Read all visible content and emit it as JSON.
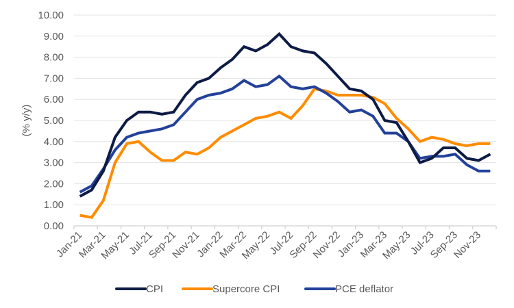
{
  "chart_data": {
    "type": "line",
    "title": "",
    "xlabel": "",
    "ylabel": "(% y/y)",
    "ylim": [
      0,
      10
    ],
    "yticks": [
      "0.00",
      "1.00",
      "2.00",
      "3.00",
      "4.00",
      "5.00",
      "6.00",
      "7.00",
      "8.00",
      "9.00",
      "10.00"
    ],
    "grid": true,
    "legend_position": "bottom",
    "x": [
      "Jan-21",
      "Feb-21",
      "Mar-21",
      "Apr-21",
      "May-21",
      "Jun-21",
      "Jul-21",
      "Aug-21",
      "Sep-21",
      "Oct-21",
      "Nov-21",
      "Dec-21",
      "Jan-22",
      "Feb-22",
      "Mar-22",
      "Apr-22",
      "May-22",
      "Jun-22",
      "Jul-22",
      "Aug-22",
      "Sep-22",
      "Oct-22",
      "Nov-22",
      "Dec-22",
      "Jan-23",
      "Feb-23",
      "Mar-23",
      "Apr-23",
      "May-23",
      "Jun-23",
      "Jul-23",
      "Aug-23",
      "Sep-23",
      "Oct-23",
      "Nov-23",
      "Dec-23"
    ],
    "xtick_labels": [
      "Jan-21",
      "Mar-21",
      "May-21",
      "Jul-21",
      "Sep-21",
      "Nov-21",
      "Jan-22",
      "Mar-22",
      "May-22",
      "Jul-22",
      "Sep-22",
      "Nov-22",
      "Jan-23",
      "Mar-23",
      "May-23",
      "Jul-23",
      "Sep-23",
      "Nov-23"
    ],
    "series": [
      {
        "name": "CPI",
        "color": "#0d1b45",
        "values": [
          1.4,
          1.7,
          2.6,
          4.2,
          5.0,
          5.4,
          5.4,
          5.3,
          5.4,
          6.2,
          6.8,
          7.0,
          7.5,
          7.9,
          8.5,
          8.3,
          8.6,
          9.1,
          8.5,
          8.3,
          8.2,
          7.7,
          7.1,
          6.5,
          6.4,
          6.0,
          5.0,
          4.9,
          4.0,
          3.0,
          3.2,
          3.7,
          3.7,
          3.2,
          3.1,
          3.4
        ]
      },
      {
        "name": "Supercore CPI",
        "color": "#ff8c00",
        "values": [
          0.5,
          0.4,
          1.2,
          3.0,
          3.9,
          4.0,
          3.5,
          3.1,
          3.1,
          3.5,
          3.4,
          3.7,
          4.2,
          4.5,
          4.8,
          5.1,
          5.2,
          5.4,
          5.1,
          5.7,
          6.5,
          6.4,
          6.2,
          6.2,
          6.2,
          6.1,
          5.8,
          5.1,
          4.6,
          4.0,
          4.2,
          4.1,
          3.9,
          3.8,
          3.9,
          3.9
        ]
      },
      {
        "name": "PCE deflator",
        "color": "#23419a",
        "values": [
          1.6,
          1.9,
          2.7,
          3.6,
          4.2,
          4.4,
          4.5,
          4.6,
          4.8,
          5.4,
          6.0,
          6.2,
          6.3,
          6.5,
          6.9,
          6.6,
          6.7,
          7.1,
          6.6,
          6.5,
          6.6,
          6.3,
          5.9,
          5.4,
          5.5,
          5.2,
          4.4,
          4.4,
          4.0,
          3.2,
          3.3,
          3.3,
          3.4,
          2.9,
          2.6,
          2.6
        ]
      }
    ]
  }
}
